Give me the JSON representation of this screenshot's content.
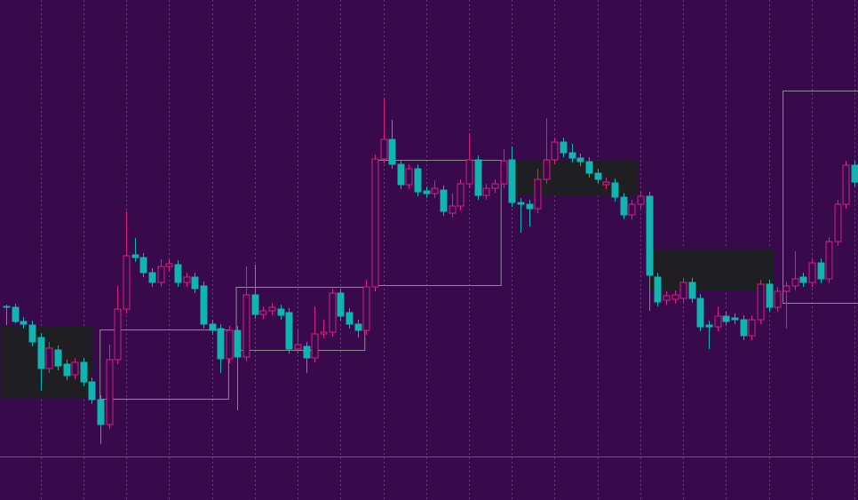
{
  "chart_data": {
    "type": "candlestick",
    "up_color": "#d8217d",
    "down_color": "#10b4b0",
    "up_hollow": true,
    "grid": true,
    "xlim": [
      -0.725,
      99.4
    ],
    "ylim": [
      0,
      514
    ],
    "xticks": [
      4,
      9,
      14,
      19,
      24,
      29,
      34,
      39,
      44,
      49,
      54,
      59,
      64,
      69,
      74,
      79,
      84,
      89,
      94,
      99
    ],
    "open": [
      169,
      168,
      152,
      148,
      134,
      99,
      120,
      104,
      92,
      106,
      84,
      64,
      36,
      109,
      166,
      227,
      224,
      207,
      196,
      214,
      216,
      196,
      202,
      192,
      149,
      144,
      110,
      142,
      112,
      182,
      160,
      164,
      166,
      162,
      121,
      124,
      111,
      138,
      140,
      184,
      162,
      149,
      142,
      191,
      335,
      357,
      329,
      306,
      324,
      299,
      296,
      300,
      274,
      282,
      307,
      334,
      294,
      302,
      307,
      334,
      286,
      284,
      279,
      312,
      334,
      354,
      342,
      336,
      332,
      319,
      306,
      308,
      292,
      272,
      284,
      293,
      202,
      176,
      177,
      178,
      196,
      178,
      148,
      146,
      158,
      156,
      154,
      136,
      154,
      194,
      168,
      186,
      192,
      202,
      196,
      218,
      200,
      242,
      284,
      328
    ],
    "high": [
      171,
      172,
      157,
      153,
      139,
      129,
      125,
      109,
      111,
      111,
      89,
      69,
      126,
      192,
      276,
      246,
      229,
      212,
      222,
      222,
      221,
      207,
      207,
      197,
      154,
      149,
      147,
      147,
      214,
      216,
      169,
      173,
      171,
      167,
      144,
      129,
      169,
      154,
      189,
      189,
      167,
      154,
      199,
      340,
      404,
      379,
      334,
      329,
      329,
      304,
      311,
      305,
      296,
      312,
      364,
      339,
      307,
      312,
      346,
      349,
      291,
      289,
      324,
      381,
      359,
      359,
      352,
      341,
      337,
      324,
      314,
      313,
      297,
      289,
      298,
      298,
      207,
      186,
      187,
      201,
      201,
      183,
      153,
      169,
      163,
      161,
      159,
      159,
      199,
      199,
      191,
      197,
      231,
      207,
      223,
      223,
      247,
      289,
      333,
      333
    ],
    "low": [
      148,
      150,
      144,
      124,
      74,
      94,
      97,
      86,
      87,
      79,
      59,
      14,
      31,
      104,
      161,
      219,
      202,
      191,
      191,
      209,
      191,
      191,
      184,
      144,
      137,
      94,
      105,
      52,
      107,
      155,
      155,
      159,
      154,
      116,
      116,
      94,
      106,
      133,
      135,
      153,
      144,
      134,
      137,
      186,
      330,
      324,
      301,
      301,
      293,
      291,
      291,
      271,
      269,
      277,
      302,
      289,
      289,
      297,
      302,
      281,
      252,
      259,
      274,
      307,
      329,
      337,
      331,
      327,
      314,
      307,
      301,
      287,
      267,
      267,
      279,
      164,
      169,
      171,
      172,
      173,
      173,
      141,
      121,
      141,
      147,
      149,
      131,
      131,
      149,
      163,
      163,
      144,
      187,
      191,
      191,
      195,
      195,
      237,
      279,
      304
    ],
    "close": [
      168,
      152,
      149,
      129,
      99,
      122,
      102,
      91,
      106,
      84,
      64,
      36,
      109,
      166,
      226,
      224,
      207,
      196,
      214,
      217,
      196,
      202,
      189,
      149,
      142,
      110,
      142,
      112,
      182,
      160,
      164,
      168,
      159,
      121,
      126,
      111,
      138,
      140,
      184,
      158,
      149,
      142,
      191,
      335,
      357,
      329,
      306,
      324,
      298,
      296,
      302,
      276,
      282,
      307,
      334,
      294,
      302,
      307,
      333,
      286,
      284,
      279,
      312,
      334,
      354,
      342,
      336,
      332,
      319,
      312,
      309,
      292,
      272,
      284,
      293,
      204,
      174,
      181,
      182,
      196,
      178,
      146,
      146,
      158,
      152,
      154,
      136,
      154,
      194,
      168,
      186,
      192,
      200,
      196,
      218,
      200,
      242,
      284,
      328,
      309
    ],
    "zones": [
      {
        "x": [
          -0.725,
          10.05
        ],
        "y": [
          66,
          147
        ],
        "style": "filled"
      },
      {
        "x": [
          10.9,
          25.9
        ],
        "y": [
          65,
          143
        ],
        "style": "outline"
      },
      {
        "x": [
          26.8,
          41.8
        ],
        "y": [
          120,
          191
        ],
        "style": "outline"
      },
      {
        "x": [
          42.7,
          57.7
        ],
        "y": [
          193,
          334
        ],
        "style": "outline"
      },
      {
        "x": [
          58.8,
          73.7
        ],
        "y": [
          294,
          334
        ],
        "style": "filled"
      },
      {
        "x": [
          74.8,
          89.6
        ],
        "y": [
          187,
          234
        ],
        "style": "filled"
      },
      {
        "x": [
          90.6,
          99.4
        ],
        "y": [
          173,
          412
        ],
        "style": "outline"
      }
    ],
    "zone_fill_color": "#1f1e22",
    "zone_outline_color": "#8e8a92"
  }
}
